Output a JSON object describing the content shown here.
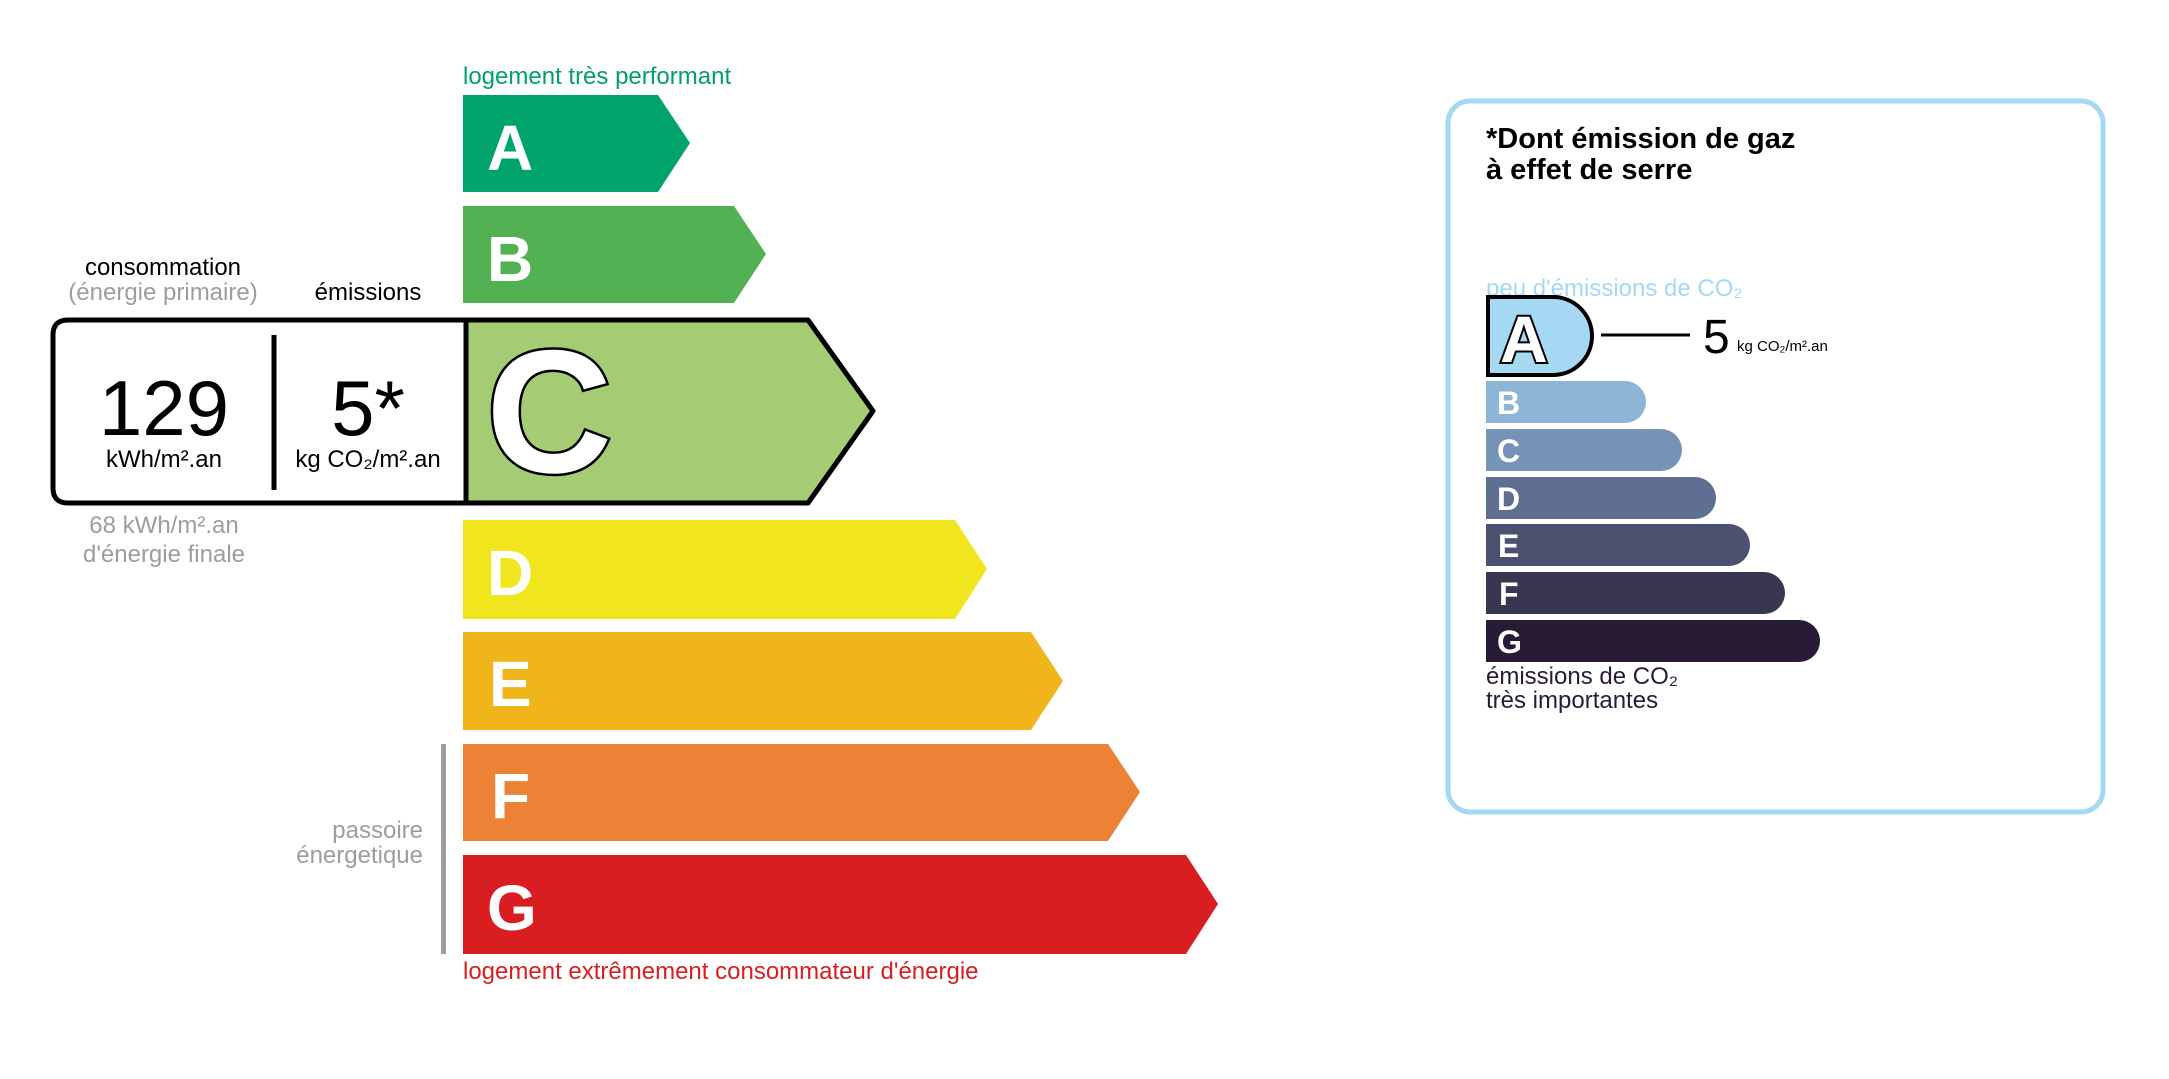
{
  "energy": {
    "top_label": "logement très performant",
    "bottom_label": "logement extrêmement consommateur d'énergie",
    "classes": [
      "A",
      "B",
      "C",
      "D",
      "E",
      "F",
      "G"
    ],
    "current_class": "C",
    "colors": {
      "A": "#00a36c",
      "B": "#52b153",
      "C": "#a5cc74",
      "D": "#f1e51d",
      "E": "#efb51a",
      "F": "#eb8235",
      "G": "#d81e20"
    },
    "consumption_label": "consommation",
    "consumption_sublabel": "(énergie primaire)",
    "emissions_label": "émissions",
    "consumption_value": "129",
    "consumption_unit": "kWh/m².an",
    "emissions_value": "5*",
    "emissions_unit": "kg CO₂/m².an",
    "final_energy_value": "68 kWh/m².an",
    "final_energy_label": "d'énergie finale",
    "passoire_line1": "passoire",
    "passoire_line2": "énergetique"
  },
  "ges": {
    "title_line1": "*Dont émission de gaz",
    "title_line2": "à effet de serre",
    "top_label": "peu d'émissions de CO₂",
    "bottom_line1": "émissions de CO₂",
    "bottom_line2": "très importantes",
    "classes": [
      "A",
      "B",
      "C",
      "D",
      "E",
      "F",
      "G"
    ],
    "current_class": "A",
    "value": "5",
    "unit": "kg CO₂/m².an",
    "colors": {
      "A": "#a5d8f3",
      "B": "#8db5d6",
      "C": "#7593b4",
      "D": "#5f6f91",
      "E": "#4d5170",
      "F": "#393651",
      "G": "#281b35"
    },
    "border_color": "#a5d8f3"
  }
}
